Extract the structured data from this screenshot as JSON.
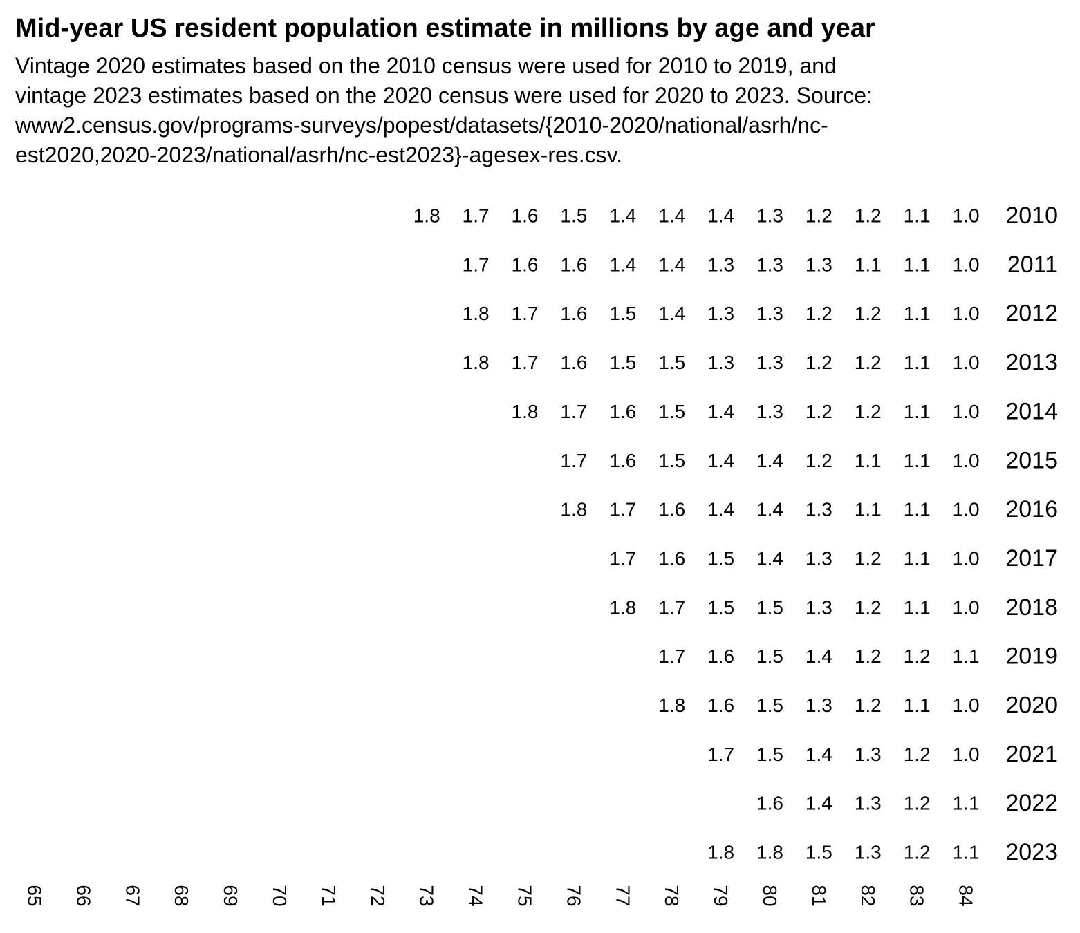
{
  "chart_data": {
    "type": "table",
    "title": "Mid-year US resident population estimate in millions by age and year",
    "subtitle": "Vintage 2020 estimates based on the 2010 census were used for 2010 to 2019, and\nvintage 2023 estimates based on the 2020 census were used for 2020 to 2023. Source:\nwww2.census.gov/programs-surveys/popest/datasets/{2010-2020/national/asrh/nc-\nest2020,2020-2023/national/asrh/nc-est2023}-agesex-res.csv.",
    "ages": [
      "65",
      "66",
      "67",
      "68",
      "69",
      "70",
      "71",
      "72",
      "73",
      "74",
      "75",
      "76",
      "77",
      "78",
      "79",
      "80",
      "81",
      "82",
      "83",
      "84"
    ],
    "rows": [
      {
        "year": "2010",
        "start_age_index": 8,
        "values": [
          "1.8",
          "1.7",
          "1.6",
          "1.5",
          "1.4",
          "1.4",
          "1.4",
          "1.3",
          "1.2",
          "1.2",
          "1.1",
          "1.0"
        ]
      },
      {
        "year": "2011",
        "start_age_index": 9,
        "values": [
          "1.7",
          "1.6",
          "1.6",
          "1.4",
          "1.4",
          "1.3",
          "1.3",
          "1.3",
          "1.1",
          "1.1",
          "1.0"
        ]
      },
      {
        "year": "2012",
        "start_age_index": 9,
        "values": [
          "1.8",
          "1.7",
          "1.6",
          "1.5",
          "1.4",
          "1.3",
          "1.3",
          "1.2",
          "1.2",
          "1.1",
          "1.0"
        ]
      },
      {
        "year": "2013",
        "start_age_index": 9,
        "values": [
          "1.8",
          "1.7",
          "1.6",
          "1.5",
          "1.5",
          "1.3",
          "1.3",
          "1.2",
          "1.2",
          "1.1",
          "1.0"
        ]
      },
      {
        "year": "2014",
        "start_age_index": 10,
        "values": [
          "1.8",
          "1.7",
          "1.6",
          "1.5",
          "1.4",
          "1.3",
          "1.2",
          "1.2",
          "1.1",
          "1.0"
        ]
      },
      {
        "year": "2015",
        "start_age_index": 11,
        "values": [
          "1.7",
          "1.6",
          "1.5",
          "1.4",
          "1.4",
          "1.2",
          "1.1",
          "1.1",
          "1.0"
        ]
      },
      {
        "year": "2016",
        "start_age_index": 11,
        "values": [
          "1.8",
          "1.7",
          "1.6",
          "1.4",
          "1.4",
          "1.3",
          "1.1",
          "1.1",
          "1.0"
        ]
      },
      {
        "year": "2017",
        "start_age_index": 12,
        "values": [
          "1.7",
          "1.6",
          "1.5",
          "1.4",
          "1.3",
          "1.2",
          "1.1",
          "1.0"
        ]
      },
      {
        "year": "2018",
        "start_age_index": 12,
        "values": [
          "1.8",
          "1.7",
          "1.5",
          "1.5",
          "1.3",
          "1.2",
          "1.1",
          "1.0"
        ]
      },
      {
        "year": "2019",
        "start_age_index": 13,
        "values": [
          "1.7",
          "1.6",
          "1.5",
          "1.4",
          "1.2",
          "1.2",
          "1.1"
        ]
      },
      {
        "year": "2020",
        "start_age_index": 13,
        "values": [
          "1.8",
          "1.6",
          "1.5",
          "1.3",
          "1.2",
          "1.1",
          "1.0"
        ]
      },
      {
        "year": "2021",
        "start_age_index": 14,
        "values": [
          "1.7",
          "1.5",
          "1.4",
          "1.3",
          "1.2",
          "1.0"
        ]
      },
      {
        "year": "2022",
        "start_age_index": 15,
        "values": [
          "1.6",
          "1.4",
          "1.3",
          "1.2",
          "1.1"
        ]
      },
      {
        "year": "2023",
        "start_age_index": 14,
        "values": [
          "1.8",
          "1.8",
          "1.5",
          "1.3",
          "1.2",
          "1.1"
        ]
      }
    ]
  }
}
